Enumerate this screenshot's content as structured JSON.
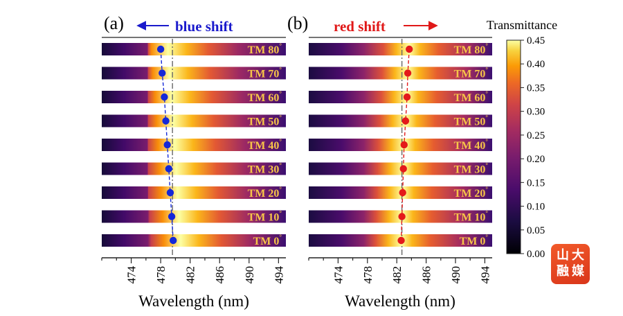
{
  "chart_data": [
    {
      "panel": "(a)",
      "type": "heatmap",
      "annotation": "blue shift",
      "annotation_color": "#1a1acc",
      "xlabel": "Wavelength (nm)",
      "xlim": [
        470,
        495
      ],
      "xticks": [
        474,
        478,
        482,
        486,
        490,
        494
      ],
      "reference_line_x": 479.6,
      "marker_color": "#1428d8",
      "rows": [
        {
          "label": "TM 80",
          "peak": 478.0
        },
        {
          "label": "TM 70",
          "peak": 478.2
        },
        {
          "label": "TM 60",
          "peak": 478.5
        },
        {
          "label": "TM 50",
          "peak": 478.7
        },
        {
          "label": "TM 40",
          "peak": 478.9
        },
        {
          "label": "TM 30",
          "peak": 479.1
        },
        {
          "label": "TM 20",
          "peak": 479.3
        },
        {
          "label": "TM 10",
          "peak": 479.5
        },
        {
          "label": "TM 0",
          "peak": 479.7
        }
      ]
    },
    {
      "panel": "(b)",
      "type": "heatmap",
      "annotation": "red shift",
      "annotation_color": "#e01818",
      "xlabel": "Wavelength (nm)",
      "xlim": [
        470,
        495
      ],
      "xticks": [
        474,
        478,
        482,
        486,
        490,
        494
      ],
      "reference_line_x": 482.7,
      "marker_color": "#e41a1a",
      "rows": [
        {
          "label": "TM 80",
          "peak": 483.7
        },
        {
          "label": "TM 70",
          "peak": 483.5
        },
        {
          "label": "TM 60",
          "peak": 483.4
        },
        {
          "label": "TM 50",
          "peak": 483.2
        },
        {
          "label": "TM 40",
          "peak": 483.0
        },
        {
          "label": "TM 30",
          "peak": 482.9
        },
        {
          "label": "TM 20",
          "peak": 482.8
        },
        {
          "label": "TM 10",
          "peak": 482.7
        },
        {
          "label": "TM 0",
          "peak": 482.6
        }
      ]
    }
  ],
  "colorbar": {
    "title": "Transmittance",
    "range": [
      0,
      0.45
    ],
    "ticks": [
      "0.45",
      "0.40",
      "0.35",
      "0.30",
      "0.25",
      "0.20",
      "0.15",
      "0.10",
      "0.05",
      "0.00"
    ],
    "colormap": "inferno"
  },
  "logo": {
    "text": "山大融媒"
  }
}
